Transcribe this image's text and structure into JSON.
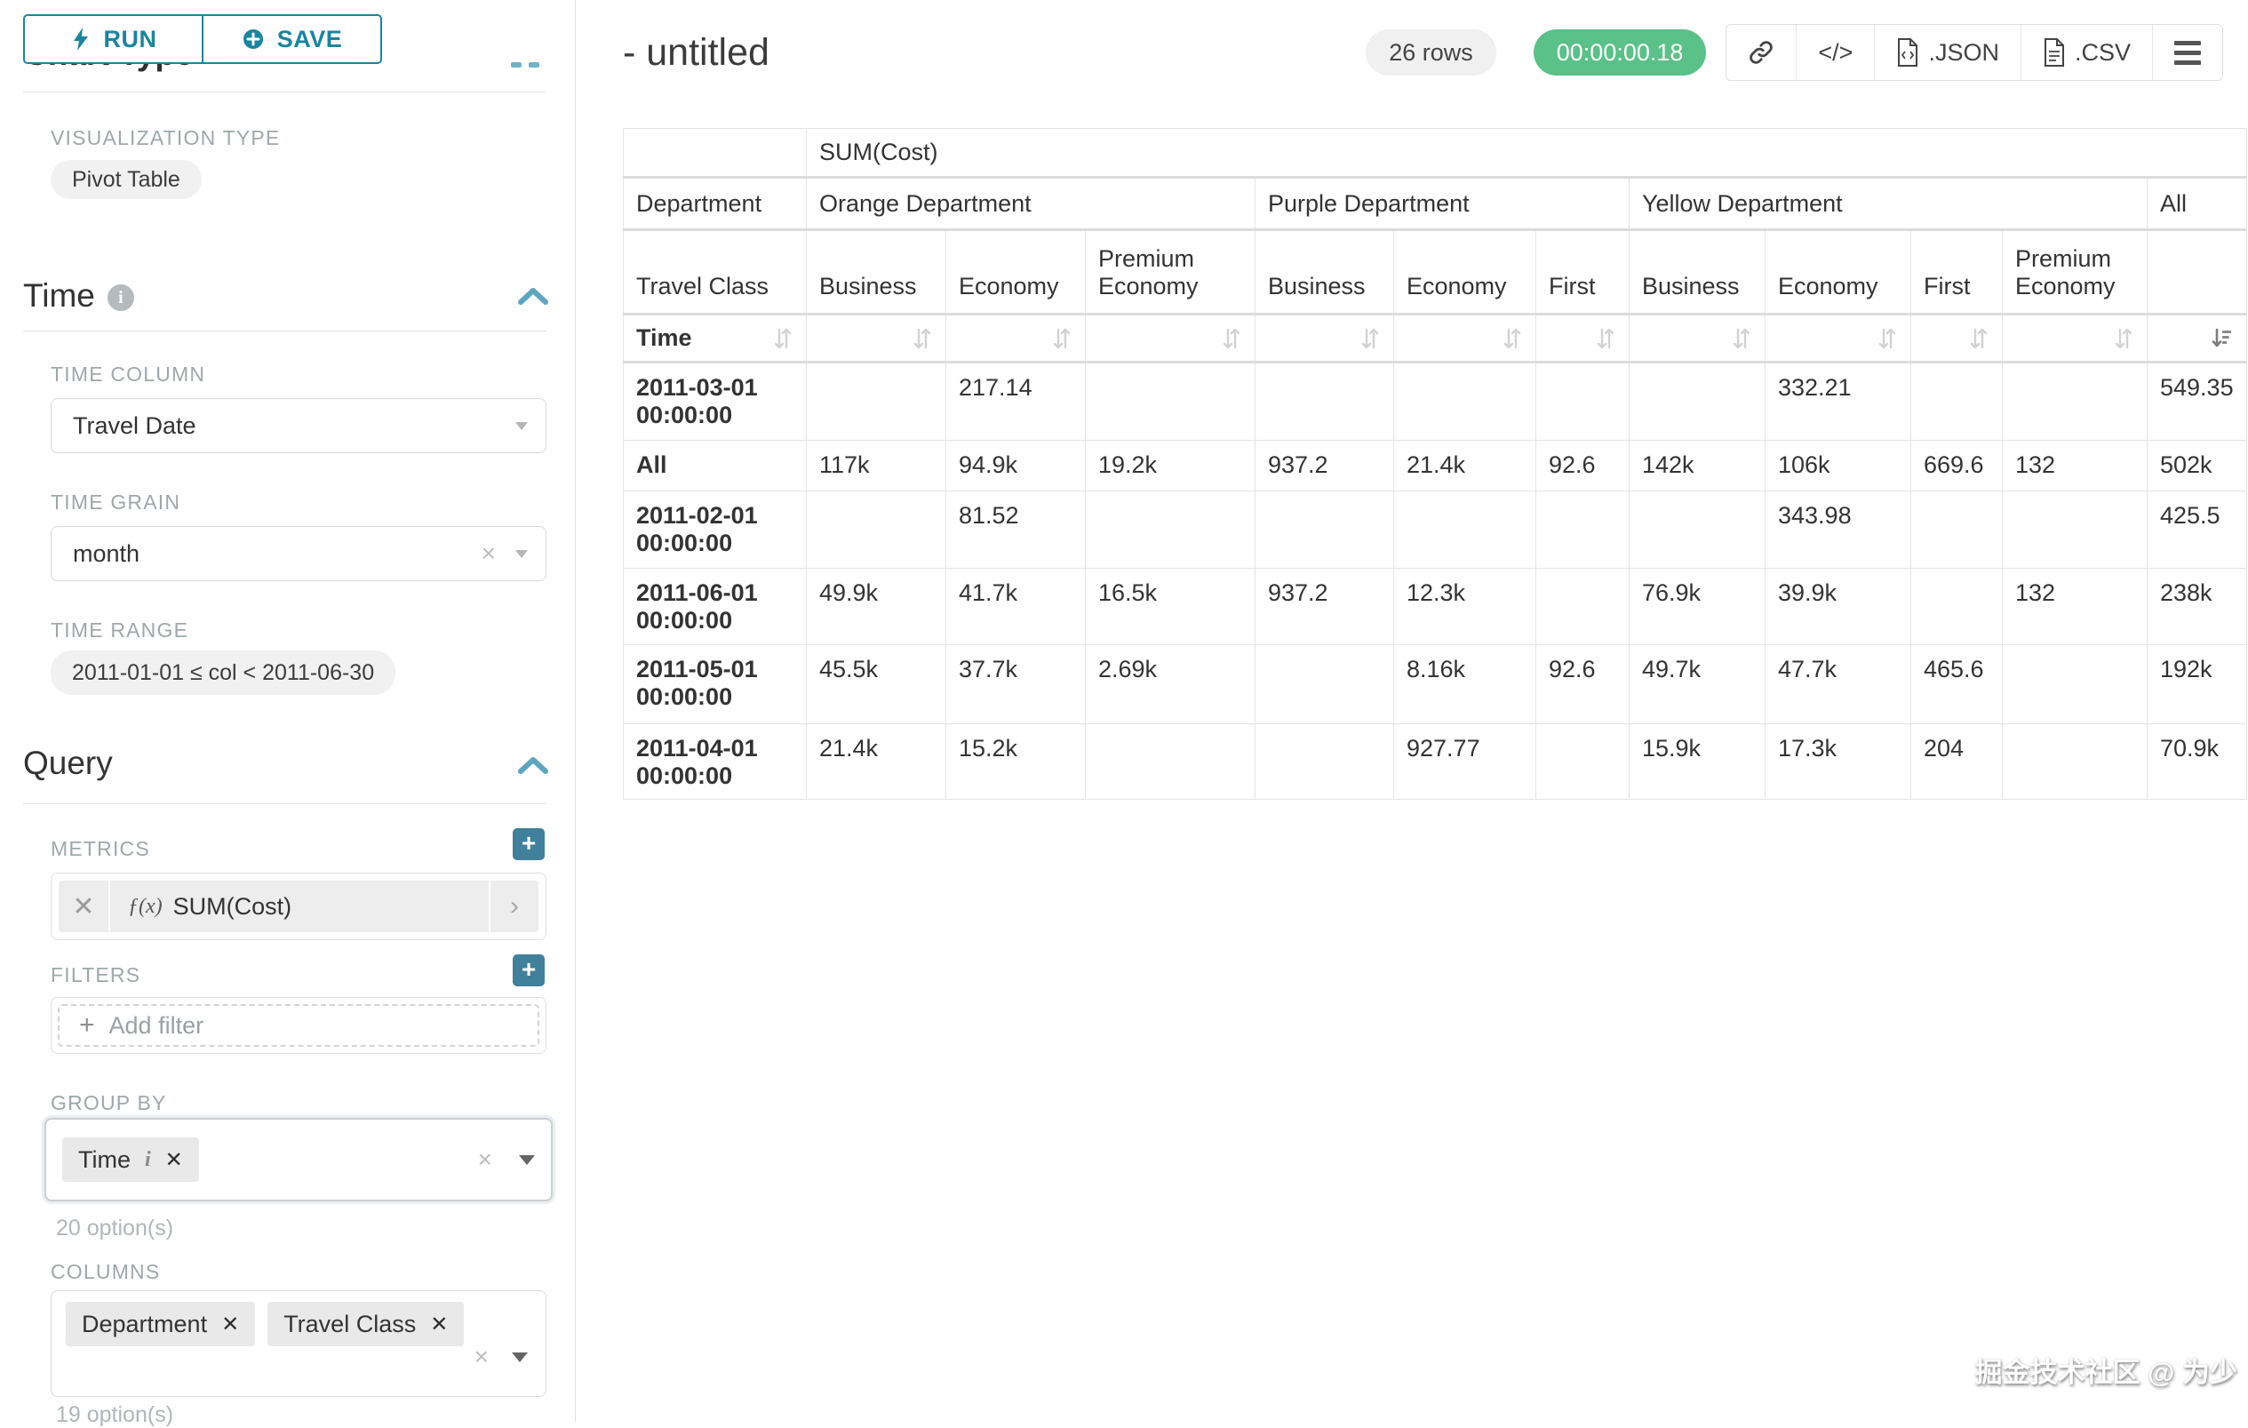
{
  "sidebar": {
    "run_label": "RUN",
    "save_label": "SAVE",
    "scrolled_heading": "Chart Type",
    "viz": {
      "label": "VISUALIZATION TYPE",
      "value": "Pivot Table"
    },
    "time": {
      "title": "Time",
      "time_column_label": "TIME COLUMN",
      "time_column_value": "Travel Date",
      "time_grain_label": "TIME GRAIN",
      "time_grain_value": "month",
      "time_range_label": "TIME RANGE",
      "time_range_value": "2011-01-01 ≤ col < 2011-06-30"
    },
    "query": {
      "title": "Query",
      "metrics_label": "METRICS",
      "metric_fx": "ƒ(x)",
      "metric_value": "SUM(Cost)",
      "filters_label": "FILTERS",
      "add_filter_label": "Add filter",
      "group_by_label": "GROUP BY",
      "group_by_chip": "Time",
      "group_by_hint": "20 option(s)",
      "columns_label": "COLUMNS",
      "columns_chips": [
        "Department",
        "Travel Class"
      ],
      "columns_hint": "19 option(s)"
    }
  },
  "header": {
    "title": "- untitled",
    "rows_badge": "26 rows",
    "timer_badge": "00:00:00.18",
    "code_icon_glyph": "</>",
    "export_json": ".JSON",
    "export_csv": ".CSV"
  },
  "chart_data": {
    "type": "table",
    "metric_header": "SUM(Cost)",
    "col_dimension_label": "Department",
    "subcol_dimension_label": "Travel Class",
    "row_dimension_label": "Time",
    "groups": [
      {
        "name": "Orange Department",
        "cols": [
          "Business",
          "Economy",
          "Premium Economy"
        ]
      },
      {
        "name": "Purple Department",
        "cols": [
          "Business",
          "Economy",
          "First"
        ]
      },
      {
        "name": "Yellow Department",
        "cols": [
          "Business",
          "Economy",
          "First",
          "Premium Economy"
        ]
      },
      {
        "name": "All",
        "cols": [
          ""
        ]
      }
    ],
    "rows": [
      {
        "label": "2011-03-01 00:00:00",
        "values": [
          "",
          "217.14",
          "",
          "",
          "",
          "",
          "",
          "332.21",
          "",
          "",
          "549.35"
        ]
      },
      {
        "label": "All",
        "values": [
          "117k",
          "94.9k",
          "19.2k",
          "937.2",
          "21.4k",
          "92.6",
          "142k",
          "106k",
          "669.6",
          "132",
          "502k"
        ]
      },
      {
        "label": "2011-02-01 00:00:00",
        "values": [
          "",
          "81.52",
          "",
          "",
          "",
          "",
          "",
          "343.98",
          "",
          "",
          "425.5"
        ]
      },
      {
        "label": "2011-06-01 00:00:00",
        "values": [
          "49.9k",
          "41.7k",
          "16.5k",
          "937.2",
          "12.3k",
          "",
          "76.9k",
          "39.9k",
          "",
          "132",
          "238k"
        ]
      },
      {
        "label": "2011-05-01 00:00:00",
        "values": [
          "45.5k",
          "37.7k",
          "2.69k",
          "",
          "8.16k",
          "92.6",
          "49.7k",
          "47.7k",
          "465.6",
          "",
          "192k"
        ]
      },
      {
        "label": "2011-04-01 00:00:00",
        "values": [
          "21.4k",
          "15.2k",
          "",
          "",
          "927.77",
          "",
          "15.9k",
          "17.3k",
          "204",
          "",
          "70.9k"
        ]
      }
    ],
    "sort_active_column": "All",
    "sort_direction": "desc"
  },
  "watermark": "掘金技术社区 @ 为少"
}
